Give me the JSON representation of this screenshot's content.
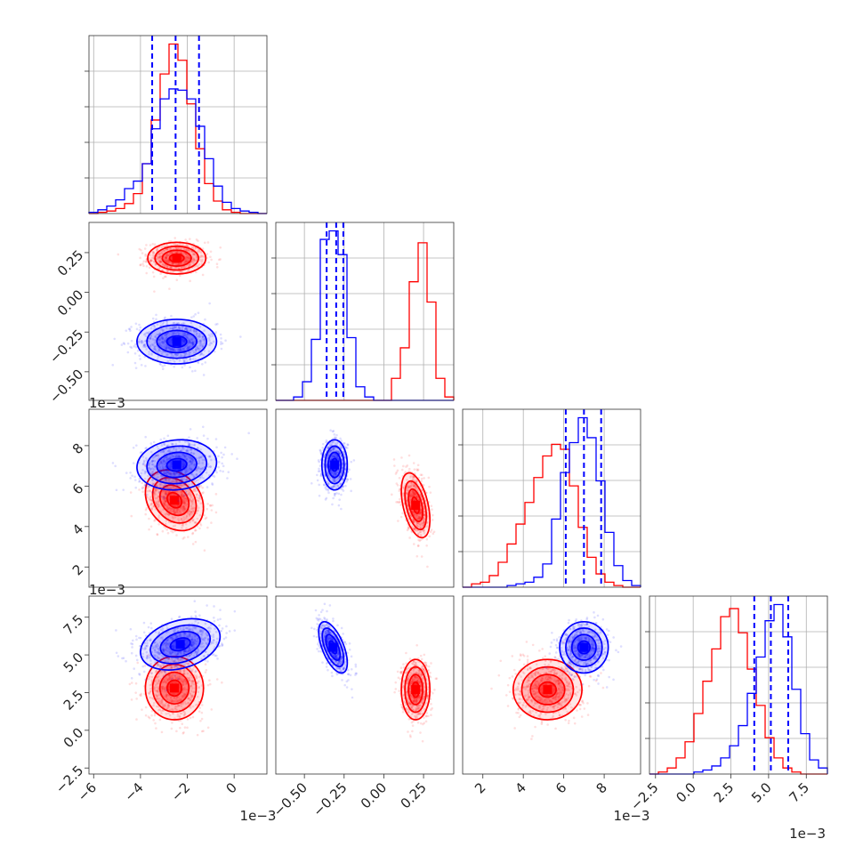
{
  "chart_data": {
    "type": "corner",
    "colors": {
      "series_a": "#0000ff",
      "series_b": "#ff0000"
    },
    "series": [
      {
        "color": "#0000ff",
        "quantiles_dashed": true
      },
      {
        "color": "#ff0000"
      }
    ],
    "parameters": [
      {
        "range": [
          -6.2,
          1.4
        ],
        "ticks": [
          -6,
          -4,
          -2,
          0
        ],
        "tick_labels": [
          "−6",
          "−4",
          "−2",
          "0"
        ],
        "offset_label": "1e−3",
        "quantiles": [
          -3.5,
          -2.5,
          -1.5
        ],
        "hist": {
          "edges": [
            -6.2,
            -5.82,
            -5.44,
            -5.06,
            -4.68,
            -4.3,
            -3.92,
            -3.54,
            -3.16,
            -2.78,
            -2.4,
            -2.02,
            -1.64,
            -1.26,
            -0.88,
            -0.5,
            -0.12,
            0.26,
            0.64,
            1.02,
            1.4
          ],
          "series_a": [
            0.01,
            0.03,
            0.06,
            0.11,
            0.2,
            0.26,
            0.4,
            0.68,
            0.92,
            1.0,
            0.99,
            0.92,
            0.7,
            0.44,
            0.22,
            0.09,
            0.04,
            0.02,
            0.01,
            0.0
          ],
          "series_b": [
            0.0,
            0.01,
            0.02,
            0.04,
            0.08,
            0.16,
            0.4,
            0.75,
            1.12,
            1.36,
            1.23,
            0.88,
            0.52,
            0.24,
            0.1,
            0.03,
            0.01,
            0.0,
            0.0,
            0.0
          ]
        }
      },
      {
        "range": [
          -0.68,
          0.44
        ],
        "ticks": [
          -0.5,
          -0.25,
          0.0,
          0.25
        ],
        "tick_labels": [
          "−0.50",
          "−0.25",
          "0.00",
          "0.25"
        ],
        "quantiles": [
          -0.36,
          -0.3,
          -0.255
        ],
        "hist": {
          "edges": [
            -0.68,
            -0.624,
            -0.568,
            -0.512,
            -0.456,
            -0.4,
            -0.344,
            -0.288,
            -0.232,
            -0.176,
            -0.12,
            -0.064,
            -0.008,
            0.048,
            0.104,
            0.16,
            0.216,
            0.272,
            0.328,
            0.384,
            0.44
          ],
          "series_a": [
            0.0,
            0.0,
            0.02,
            0.11,
            0.36,
            0.95,
            1.0,
            0.86,
            0.37,
            0.08,
            0.02,
            0.0,
            0.0,
            0.0,
            0.0,
            0.0,
            0.0,
            0.0,
            0.0,
            0.0
          ],
          "series_b": [
            0.0,
            0.0,
            0.0,
            0.0,
            0.0,
            0.0,
            0.0,
            0.0,
            0.0,
            0.0,
            0.0,
            0.0,
            0.0,
            0.13,
            0.31,
            0.7,
            0.93,
            0.58,
            0.13,
            0.02
          ]
        }
      },
      {
        "range": [
          1.0,
          9.8
        ],
        "ticks": [
          2,
          4,
          6,
          8
        ],
        "tick_labels": [
          "2",
          "4",
          "6",
          "8"
        ],
        "offset_label": "1e−3",
        "quantiles": [
          6.1,
          7.0,
          7.85
        ],
        "hist": {
          "edges": [
            1.0,
            1.44,
            1.88,
            2.32,
            2.76,
            3.2,
            3.64,
            4.08,
            4.52,
            4.96,
            5.4,
            5.84,
            6.28,
            6.72,
            7.16,
            7.6,
            8.04,
            8.48,
            8.92,
            9.36,
            9.8
          ],
          "series_a": [
            0.0,
            0.0,
            0.0,
            0.0,
            0.0,
            0.01,
            0.02,
            0.03,
            0.06,
            0.14,
            0.41,
            0.69,
            0.87,
            1.02,
            0.9,
            0.64,
            0.33,
            0.13,
            0.04,
            0.01
          ],
          "series_b": [
            0.0,
            0.02,
            0.03,
            0.07,
            0.15,
            0.26,
            0.38,
            0.51,
            0.66,
            0.79,
            0.86,
            0.83,
            0.61,
            0.36,
            0.18,
            0.08,
            0.03,
            0.01,
            0.0,
            0.0
          ]
        }
      },
      {
        "range": [
          -2.9,
          8.9
        ],
        "ticks": [
          -2.5,
          0.0,
          2.5,
          5.0,
          7.5
        ],
        "tick_labels": [
          "−2.5",
          "0.0",
          "2.5",
          "5.0",
          "7.5"
        ],
        "offset_label": "1e−3",
        "quantiles": [
          4.05,
          5.15,
          6.3
        ],
        "hist": {
          "edges": [
            -2.9,
            -2.31,
            -1.72,
            -1.13,
            -0.54,
            0.05,
            0.64,
            1.23,
            1.82,
            2.41,
            3.0,
            3.59,
            4.18,
            4.77,
            5.36,
            5.95,
            6.54,
            7.13,
            7.72,
            8.31,
            8.9
          ],
          "series_a": [
            0.0,
            0.0,
            0.0,
            0.0,
            0.0,
            0.01,
            0.02,
            0.04,
            0.08,
            0.14,
            0.24,
            0.4,
            0.58,
            0.76,
            0.84,
            0.68,
            0.42,
            0.2,
            0.07,
            0.03
          ],
          "series_b": [
            0.0,
            0.01,
            0.03,
            0.08,
            0.16,
            0.3,
            0.46,
            0.62,
            0.78,
            0.82,
            0.7,
            0.52,
            0.34,
            0.18,
            0.08,
            0.03,
            0.01,
            0.0,
            0.0,
            0.0
          ]
        }
      }
    ],
    "pairs": [
      {
        "row": 1,
        "col": 0,
        "series_a": {
          "center": [
            -2.45,
            -0.31
          ],
          "sd": [
            0.85,
            0.07
          ],
          "rho": 0.0
        },
        "series_b": {
          "center": [
            -2.45,
            0.215
          ],
          "sd": [
            0.62,
            0.05
          ],
          "rho": 0.0
        }
      },
      {
        "row": 2,
        "col": 0,
        "series_a": {
          "center": [
            -2.45,
            7.05
          ],
          "sd": [
            0.85,
            0.62
          ],
          "rho": 0.1
        },
        "series_b": {
          "center": [
            -2.55,
            5.3
          ],
          "sd": [
            0.62,
            0.75
          ],
          "rho": -0.25
        }
      },
      {
        "row": 2,
        "col": 1,
        "series_a": {
          "center": [
            -0.31,
            7.05
          ],
          "sd": [
            0.04,
            0.62
          ],
          "rho": 0.0
        },
        "series_b": {
          "center": [
            0.2,
            5.05
          ],
          "sd": [
            0.045,
            0.8
          ],
          "rho": -0.45
        }
      },
      {
        "row": 3,
        "col": 0,
        "series_a": {
          "center": [
            -2.3,
            5.7
          ],
          "sd": [
            0.85,
            0.85
          ],
          "rho": 0.3
        },
        "series_b": {
          "center": [
            -2.55,
            2.8
          ],
          "sd": [
            0.62,
            1.05
          ],
          "rho": 0.0
        }
      },
      {
        "row": 3,
        "col": 1,
        "series_a": {
          "center": [
            -0.32,
            5.5
          ],
          "sd": [
            0.045,
            0.85
          ],
          "rho": -0.6
        },
        "series_b": {
          "center": [
            0.2,
            2.7
          ],
          "sd": [
            0.045,
            1.0
          ],
          "rho": 0.0
        }
      },
      {
        "row": 3,
        "col": 2,
        "series_a": {
          "center": [
            7.0,
            5.5
          ],
          "sd": [
            0.6,
            0.85
          ],
          "rho": 0.0
        },
        "series_b": {
          "center": [
            5.2,
            2.7
          ],
          "sd": [
            0.85,
            1.0
          ],
          "rho": 0.0
        }
      }
    ],
    "contour_levels_sigma": [
      0.5,
      1.0,
      1.5,
      2.0
    ],
    "grid": true
  }
}
